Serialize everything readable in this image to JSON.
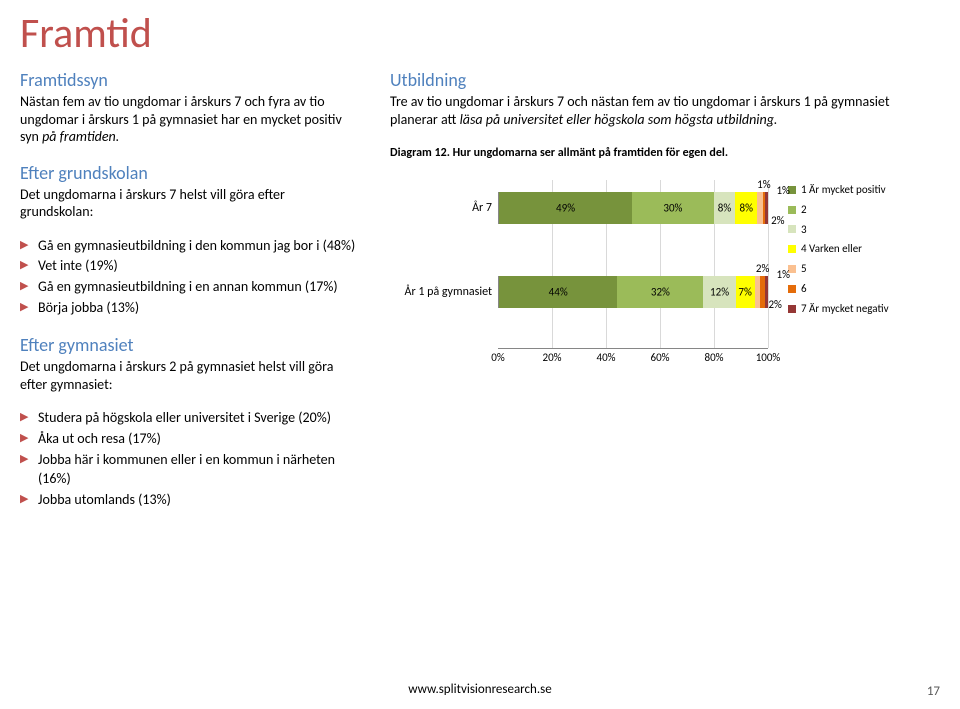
{
  "title": "Framtid",
  "left": {
    "s1_heading": "Framtidssyn",
    "s1_text": "Nästan fem av tio ungdomar i årskurs 7 och fyra av tio ungdomar i årskurs 1 på gymnasiet har en mycket positiv syn på framtiden.",
    "s2_heading": "Efter grundskolan",
    "s2_text": "Det ungdomarna i årskurs 7 helst vill göra efter grundskolan:",
    "s2_items": [
      "Gå en gymnasieutbildning i den kommun jag bor i (48%)",
      "Vet inte (19%)",
      "Gå en gymnasieutbildning i en annan kommun (17%)",
      "Börja jobba (13%)"
    ],
    "s3_heading": "Efter gymnasiet",
    "s3_text": "Det ungdomarna i årskurs 2 på gymnasiet helst vill göra efter gymnasiet:",
    "s3_items": [
      "Studera på högskola eller universitet i Sverige (20%)",
      "Åka ut och resa (17%)",
      "Jobba här i kommunen eller i en kommun i närheten (16%)",
      "Jobba utomlands (13%)"
    ]
  },
  "right": {
    "s1_heading": "Utbildning",
    "s1_text": "Tre av tio ungdomar i årskurs 7 och nästan fem av tio ungdomar i årskurs 1 på gymnasiet planerar att läsa på universitet eller högskola som högsta utbildning.",
    "caption": "Diagram 12. Hur ungdomarna ser allmänt på framtiden för egen del."
  },
  "chart": {
    "rows": [
      {
        "label": "År 7",
        "segments": [
          {
            "v": 49,
            "c": "#77933c",
            "t": "49%"
          },
          {
            "v": 30,
            "c": "#9bbb59",
            "t": "30%"
          },
          {
            "v": 8,
            "c": "#d7e4bd",
            "t": "8%"
          },
          {
            "v": 8,
            "c": "#ffff00",
            "t": "8%"
          },
          {
            "v": 2,
            "c": "#fac090",
            "t": "2%",
            "pos": "outside2"
          },
          {
            "v": 1,
            "c": "#e46c0a",
            "t": "1%",
            "pos": "above"
          },
          {
            "v": 1,
            "c": "#953735",
            "t": "1%",
            "pos": "outside"
          }
        ]
      },
      {
        "label": "År 1 på gymnasiet",
        "segments": [
          {
            "v": 44,
            "c": "#77933c",
            "t": "44%"
          },
          {
            "v": 32,
            "c": "#9bbb59",
            "t": "32%"
          },
          {
            "v": 12,
            "c": "#d7e4bd",
            "t": "12%"
          },
          {
            "v": 7,
            "c": "#ffff00",
            "t": "7%"
          },
          {
            "v": 2,
            "c": "#fac090",
            "t": "2%",
            "pos": "outside2"
          },
          {
            "v": 2,
            "c": "#e46c0a",
            "t": "2%",
            "pos": "above"
          },
          {
            "v": 1,
            "c": "#953735",
            "t": "1%",
            "pos": "outside"
          }
        ]
      }
    ],
    "ticks": [
      "0%",
      "20%",
      "40%",
      "60%",
      "80%",
      "100%"
    ],
    "legend": [
      {
        "c": "#77933c",
        "t": "1 Är mycket positiv"
      },
      {
        "c": "#9bbb59",
        "t": "2"
      },
      {
        "c": "#d7e4bd",
        "t": "3"
      },
      {
        "c": "#ffff00",
        "t": "4 Varken eller"
      },
      {
        "c": "#fac090",
        "t": "5"
      },
      {
        "c": "#e46c0a",
        "t": "6"
      },
      {
        "c": "#953735",
        "t": "7 Är mycket negativ"
      }
    ]
  },
  "footer": "www.splitvisionresearch.se",
  "pagenum": "17"
}
